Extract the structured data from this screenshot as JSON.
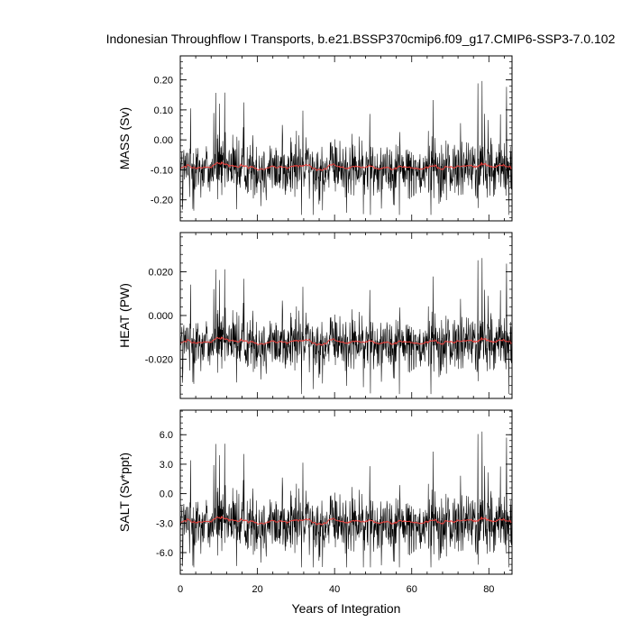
{
  "title": "Indonesian Throughflow I Transports, b.e21.BSSP370cmip6.f09_g17.CMIP6-SSP3-7.0.102",
  "xlabel": "Years of Integration",
  "colors": {
    "raw": "#000000",
    "smooth": "#e8403c",
    "frame": "#000000"
  },
  "chart_data": [
    {
      "type": "line",
      "ylabel": "MASS (Sv)",
      "xlim": [
        0,
        86
      ],
      "ylim": [
        -0.27,
        0.28
      ],
      "yticks": [
        -0.2,
        -0.1,
        0.0,
        0.1,
        0.2
      ],
      "yticklabels": [
        "-0.20",
        "-0.10",
        "0.00",
        "0.10",
        "0.20"
      ],
      "xticks": [
        0,
        20,
        40,
        60,
        80
      ],
      "xticklabels": [
        "0",
        "20",
        "40",
        "60",
        "80"
      ],
      "series": [
        {
          "kind": "monthly",
          "mean": -0.095,
          "amplitude": 0.075,
          "spike_max": 0.27,
          "spike_min": -0.25,
          "n": 1032
        },
        {
          "kind": "running-mean",
          "mean": -0.09,
          "amplitude": 0.015
        }
      ]
    },
    {
      "type": "line",
      "ylabel": "HEAT (PW)",
      "xlim": [
        0,
        86
      ],
      "ylim": [
        -0.038,
        0.038
      ],
      "yticks": [
        -0.02,
        0.0,
        0.02
      ],
      "yticklabels": [
        "-0.020",
        "0.000",
        "0.020"
      ],
      "xticks": [
        0,
        20,
        40,
        60,
        80
      ],
      "xticklabels": [
        "0",
        "20",
        "40",
        "60",
        "80"
      ],
      "series": [
        {
          "kind": "monthly",
          "mean": -0.0125,
          "amplitude": 0.01,
          "spike_max": 0.036,
          "spike_min": -0.036,
          "n": 1032
        },
        {
          "kind": "running-mean",
          "mean": -0.012,
          "amplitude": 0.002
        }
      ]
    },
    {
      "type": "line",
      "ylabel": "SALT (Sv*ppt)",
      "xlim": [
        0,
        86
      ],
      "ylim": [
        -8.2,
        8.5
      ],
      "yticks": [
        -6.0,
        -3.0,
        0.0,
        3.0,
        6.0
      ],
      "yticklabels": [
        "-6.0",
        "-3.0",
        "0.0",
        "3.0",
        "6.0"
      ],
      "xticks": [
        0,
        20,
        40,
        60,
        80
      ],
      "xticklabels": [
        "0",
        "20",
        "40",
        "60",
        "80"
      ],
      "series": [
        {
          "kind": "monthly",
          "mean": -3.0,
          "amplitude": 2.4,
          "spike_max": 8.2,
          "spike_min": -7.5,
          "n": 1032
        },
        {
          "kind": "running-mean",
          "mean": -2.8,
          "amplitude": 0.45
        }
      ]
    }
  ]
}
